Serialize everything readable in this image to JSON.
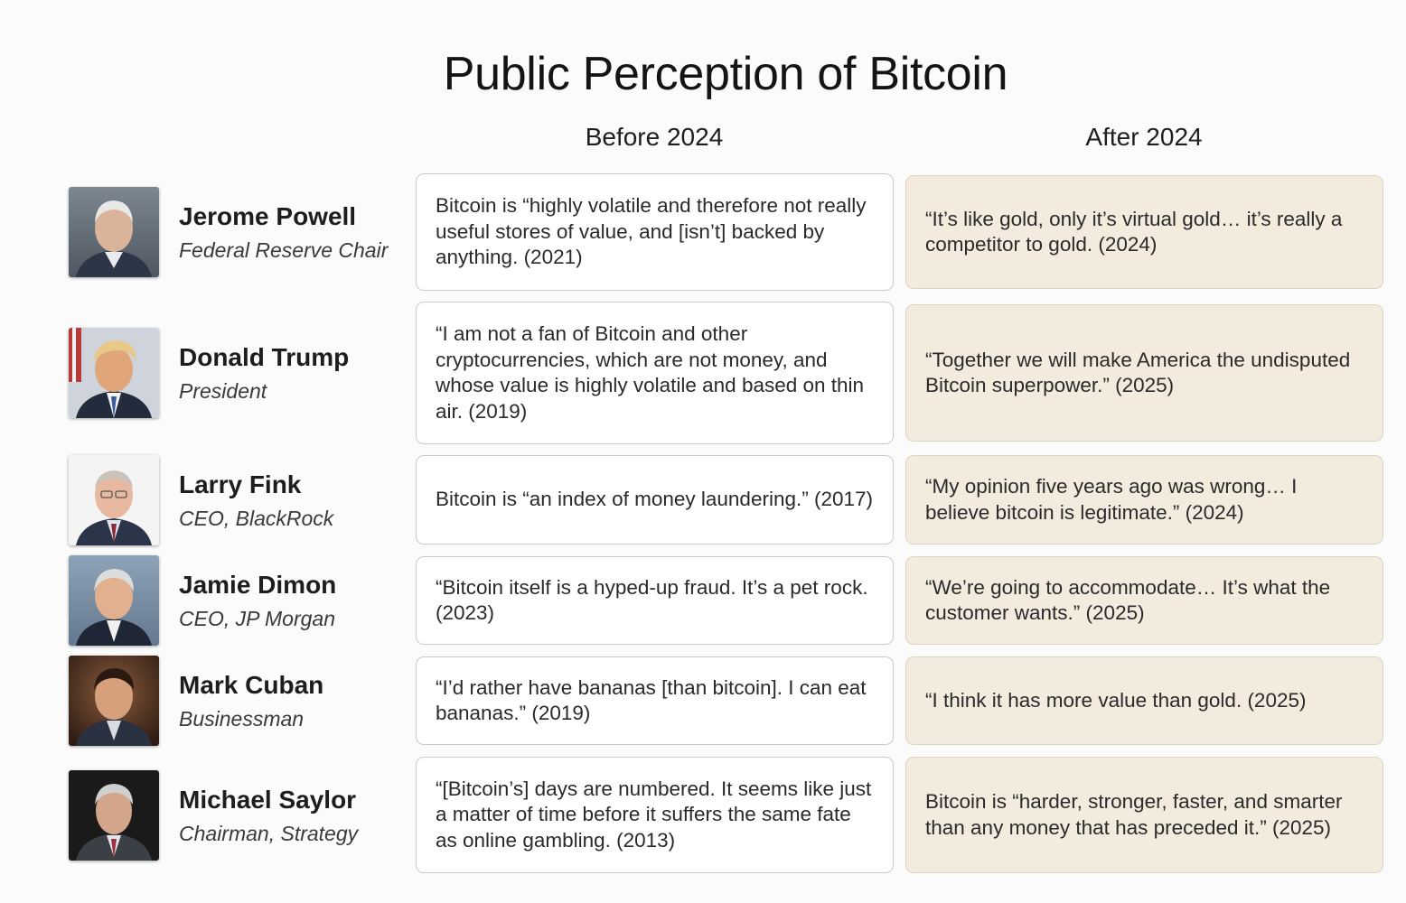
{
  "title": "Public Perception of Bitcoin",
  "columns": {
    "before": "Before 2024",
    "after": "After 2024"
  },
  "colors": {
    "after_card_bg": "#f2ebde",
    "before_card_bg": "#ffffff",
    "border": "#c9c9c9"
  },
  "rows": [
    {
      "name": "Jerome Powell",
      "role": "Federal Reserve Chair",
      "photo_icon": "portrait-photo",
      "before": "Bitcoin is “highly volatile and therefore not really useful stores of value, and [isn’t] backed by anything. (2021)",
      "after": "“It’s like gold, only it’s virtual gold… it’s really a competitor to gold. (2024)"
    },
    {
      "name": "Donald Trump",
      "role": "President",
      "photo_icon": "portrait-photo",
      "before": "“I am not a fan of Bitcoin and other cryptocurrencies, which are not money, and whose value is highly volatile and based on thin air. (2019)",
      "after": "“Together we will make America the undisputed Bitcoin superpower.” (2025)"
    },
    {
      "name": "Larry Fink",
      "role": "CEO, BlackRock",
      "photo_icon": "portrait-photo",
      "before": "Bitcoin is “an index of money laundering.” (2017)",
      "after": "“My opinion five years ago was wrong… I believe bitcoin is legitimate.” (2024)"
    },
    {
      "name": "Jamie Dimon",
      "role": "CEO, JP Morgan",
      "photo_icon": "portrait-photo",
      "before": "“Bitcoin itself is a hyped-up fraud. It’s a pet rock. (2023)",
      "after": "“We’re going to accommodate… It’s what the customer wants.” (2025)"
    },
    {
      "name": "Mark Cuban",
      "role": "Businessman",
      "photo_icon": "portrait-photo",
      "before": "“I’d rather have bananas [than bitcoin]. I can eat bananas.” (2019)",
      "after": "“I think it has more value than gold. (2025)"
    },
    {
      "name": "Michael Saylor",
      "role": "Chairman, Strategy",
      "photo_icon": "portrait-photo",
      "before": "“[Bitcoin’s] days are numbered. It seems like just a matter of time before it suffers the same fate as online gambling. (2013)",
      "after": "Bitcoin is “harder, stronger, faster, and smarter than any money that has preceded it.” (2025)"
    }
  ]
}
